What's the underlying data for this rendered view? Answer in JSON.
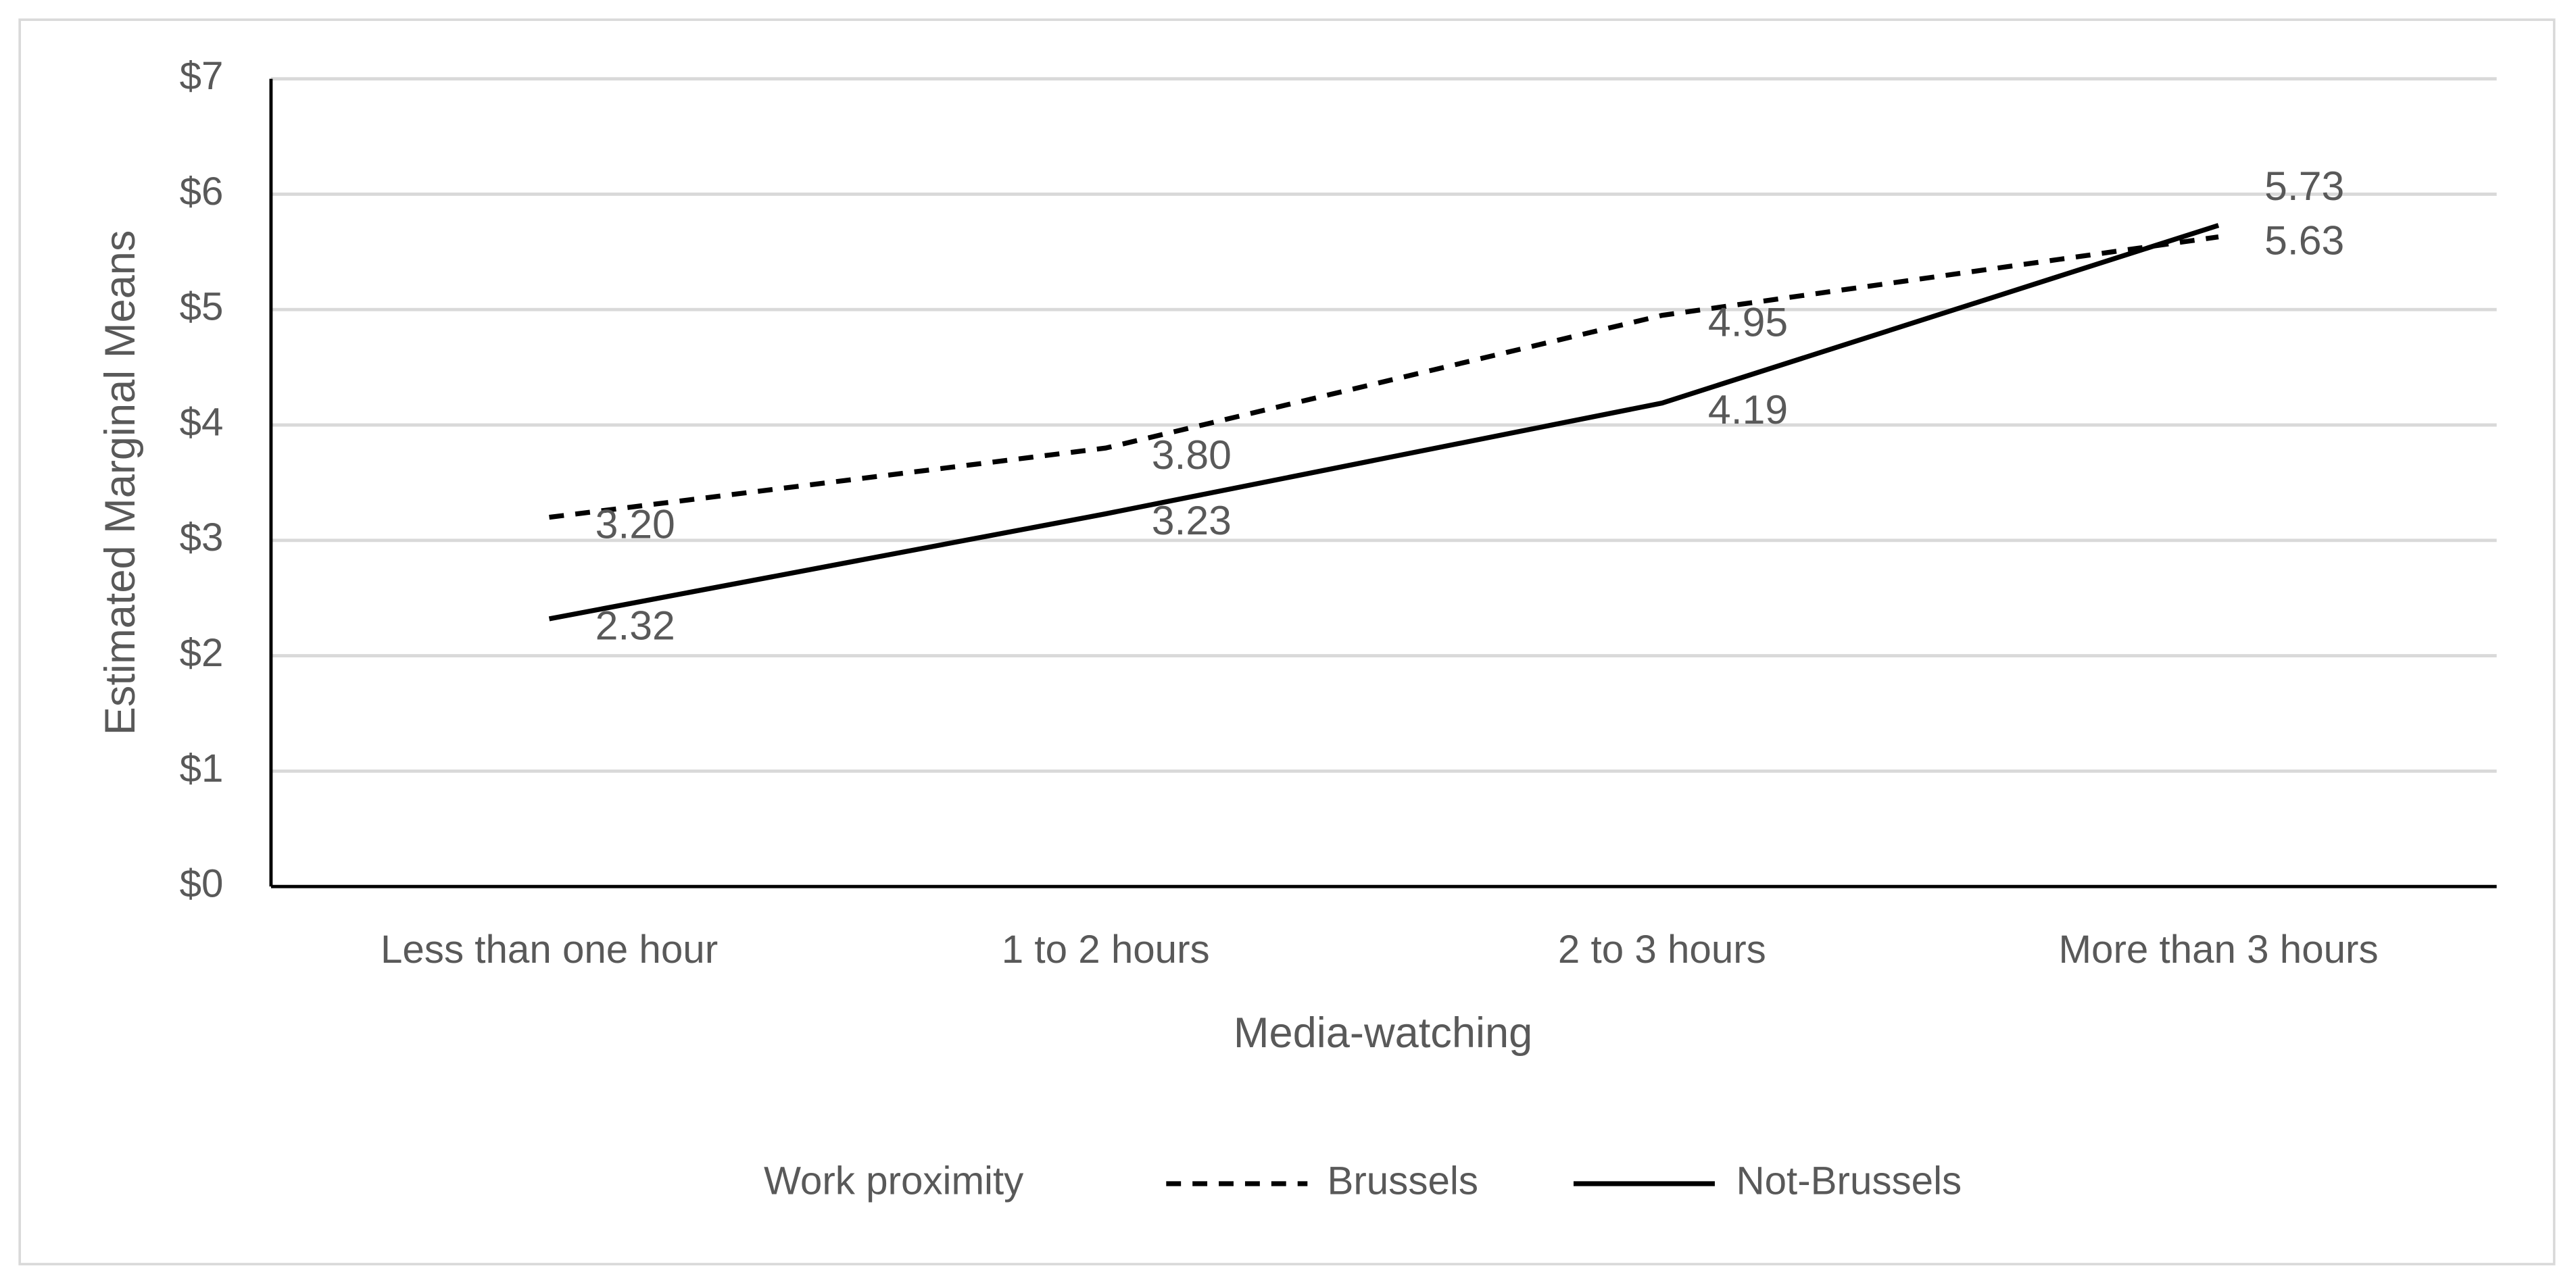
{
  "chart_data": {
    "type": "line",
    "x_label": "Media-watching",
    "y_label": "Estimated Marginal Means",
    "categories": [
      "Less than one hour",
      "1 to 2 hours",
      "2 to 3 hours",
      "More than 3 hours"
    ],
    "legend_title": "Work proximity",
    "series": [
      {
        "name": "Brussels",
        "color": "#000000",
        "dash": "dashed",
        "values": [
          3.2,
          3.8,
          4.95,
          5.63
        ],
        "value_labels": [
          "3.20",
          "3.80",
          "4.95",
          "5.63"
        ]
      },
      {
        "name": "Not-Brussels",
        "color": "#000000",
        "dash": "solid",
        "values": [
          2.32,
          3.23,
          4.19,
          5.73
        ],
        "value_labels": [
          "2.32",
          "3.23",
          "4.19",
          "5.73"
        ]
      }
    ],
    "ylim": [
      0,
      7
    ],
    "yticks": [
      {
        "value": 0,
        "label": "$0"
      },
      {
        "value": 1,
        "label": "$1"
      },
      {
        "value": 2,
        "label": "$2"
      },
      {
        "value": 3,
        "label": "$3"
      },
      {
        "value": 4,
        "label": "$4"
      },
      {
        "value": 5,
        "label": "$5"
      },
      {
        "value": 6,
        "label": "$6"
      },
      {
        "value": 7,
        "label": "$7"
      }
    ],
    "grid": true,
    "legend": "bottom"
  }
}
